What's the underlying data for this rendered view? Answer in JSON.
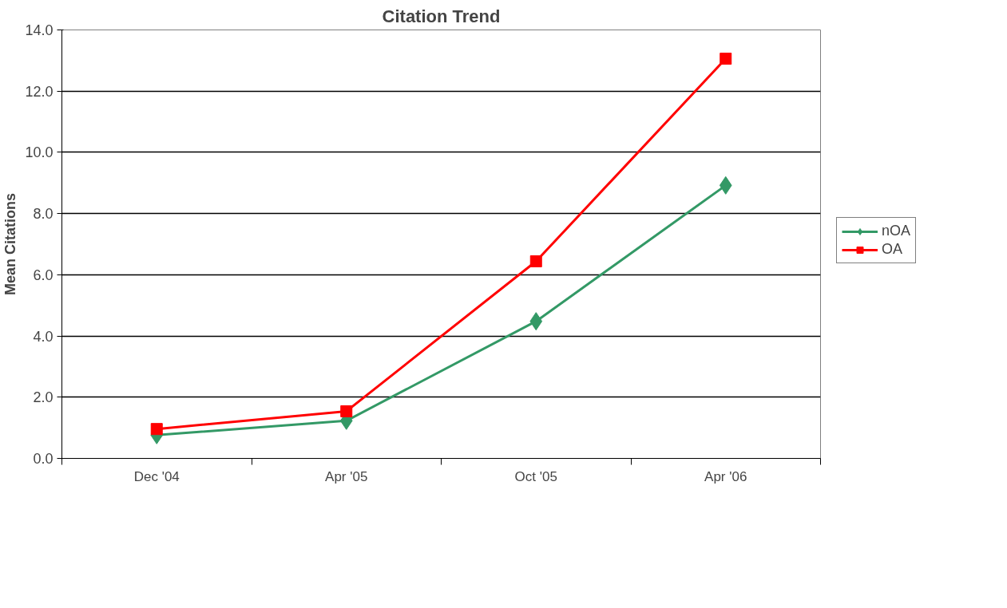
{
  "chart_data": {
    "type": "line",
    "title": "Citation Trend",
    "ylabel": "Mean Citations",
    "categories": [
      "Dec '04",
      "Apr '05",
      "Oct '05",
      "Apr '06"
    ],
    "series": [
      {
        "name": "nOA",
        "color": "#339966",
        "marker": "diamond",
        "values": [
          0.76,
          1.23,
          4.48,
          8.92
        ]
      },
      {
        "name": "OA",
        "color": "#ff0000",
        "marker": "square",
        "values": [
          0.96,
          1.54,
          6.44,
          13.06
        ]
      }
    ],
    "ylim": [
      0,
      14
    ],
    "yticks": [
      {
        "value": 0,
        "label": "0.0"
      },
      {
        "value": 2,
        "label": "2.0"
      },
      {
        "value": 4,
        "label": "4.0"
      },
      {
        "value": 6,
        "label": "6.0"
      },
      {
        "value": 8,
        "label": "8.0"
      },
      {
        "value": 10,
        "label": "10.0"
      },
      {
        "value": 12,
        "label": "12.0"
      },
      {
        "value": 14,
        "label": "14.0"
      }
    ],
    "grid": "y",
    "legend": "right",
    "line_style": "solid"
  }
}
